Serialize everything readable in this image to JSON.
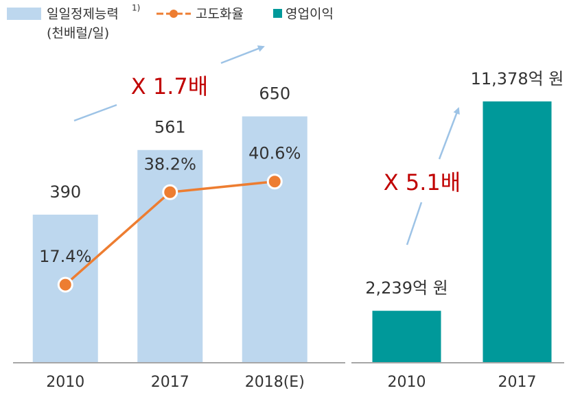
{
  "chart_data": [
    {
      "type": "bar",
      "categories": [
        "2010",
        "2017",
        "2018(E)"
      ],
      "series": [
        {
          "name": "일일정제능력",
          "color": "#bdd7ee",
          "values": [
            390,
            561,
            650
          ]
        },
        {
          "name": "고도화율",
          "type": "line",
          "axis": "y2",
          "color": "#ed7d31",
          "values": [
            17.4,
            38.2,
            40.6
          ],
          "value_labels": [
            "17.4%",
            "38.2%",
            "40.6%"
          ]
        }
      ],
      "name_note": "1)",
      "unit": "(천배럴/일)",
      "annotation": "X 1.7배",
      "ylim": [
        0,
        800
      ],
      "y2lim": [
        0,
        68
      ]
    },
    {
      "type": "bar",
      "categories": [
        "2010",
        "2017"
      ],
      "series": [
        {
          "name": "영업이익",
          "color": "#00999a",
          "values": [
            2239,
            11378
          ],
          "value_labels": [
            "2,239억 원",
            "11,378억 원"
          ]
        }
      ],
      "annotation": "X 5.1배",
      "ylim": [
        0,
        13200
      ]
    }
  ]
}
